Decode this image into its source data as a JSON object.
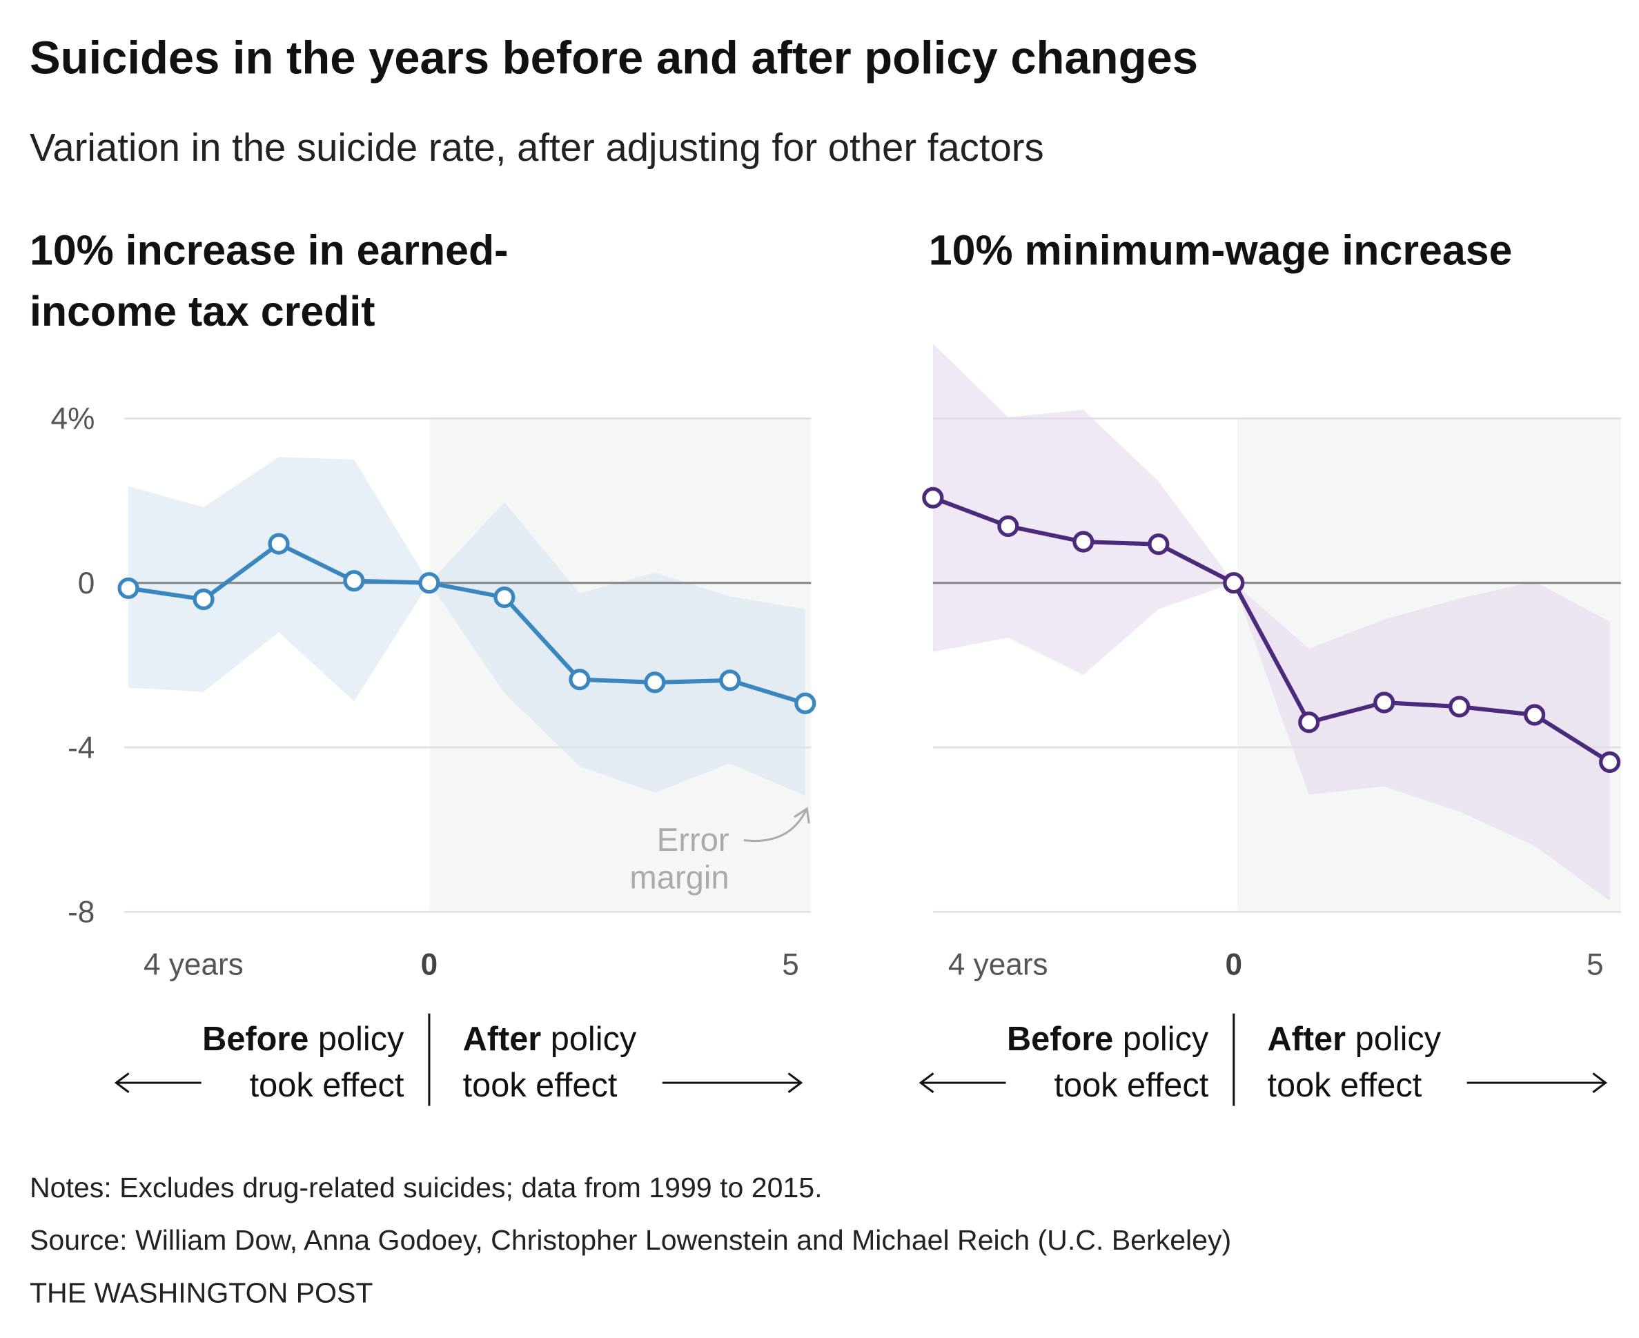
{
  "title": "Suicides in the years before and after policy changes",
  "subtitle": "Variation in the suicide rate, after adjusting for other factors",
  "notes": "Notes: Excludes drug-related suicides; data from 1999 to 2015.",
  "source": "Source: William Dow, Anna Godoey, Christopher Lowenstein and Michael Reich (U.C. Berkeley)",
  "credit": "THE WASHINGTON POST",
  "before_bold": "Before",
  "before_rest": " policy",
  "before_line2": "took effect",
  "after_bold": "After",
  "after_rest": " policy",
  "after_line2": "took effect",
  "annotation": [
    "Error",
    "margin"
  ],
  "chart_data": [
    {
      "type": "line",
      "title_lines": [
        "10% increase in earned-",
        "income tax credit"
      ],
      "color": "#3a87c0",
      "band_color": "#d6e6f0",
      "x": [
        -4,
        -3,
        -2,
        -1,
        0,
        1,
        2,
        3,
        4,
        5
      ],
      "x_tick_labels": [
        "4 years",
        "0",
        "5"
      ],
      "y_tick_labels": [
        "4%",
        "0",
        "-4",
        "-8"
      ],
      "ylim": [
        -8,
        4
      ],
      "values": [
        -0.13,
        -0.4,
        0.95,
        0.05,
        0,
        -0.35,
        -2.35,
        -2.42,
        -2.37,
        -2.93
      ],
      "upper": [
        2.35,
        1.84,
        3.06,
        3.0,
        0,
        1.96,
        -0.25,
        0.25,
        -0.33,
        -0.64
      ],
      "lower": [
        -2.55,
        -2.65,
        -1.2,
        -2.88,
        0,
        -2.68,
        -4.46,
        -5.1,
        -4.39,
        -5.18
      ]
    },
    {
      "type": "line",
      "title_lines": [
        "10% minimum-wage increase"
      ],
      "color": "#4b2a7b",
      "band_color": "#e6d9ec",
      "x": [
        -4,
        -3,
        -2,
        -1,
        0,
        1,
        2,
        3,
        4,
        5
      ],
      "x_tick_labels": [
        "4 years",
        "0",
        "5"
      ],
      "ylim": [
        -8,
        4
      ],
      "values": [
        2.07,
        1.38,
        1.0,
        0.94,
        0,
        -3.39,
        -2.91,
        -3.01,
        -3.21,
        -4.36
      ],
      "upper": [
        5.82,
        4.03,
        4.21,
        2.47,
        0,
        -1.6,
        -0.89,
        -0.38,
        0.03,
        -0.94
      ],
      "lower": [
        -1.68,
        -1.33,
        -2.24,
        -0.64,
        0,
        -5.15,
        -4.95,
        -5.56,
        -6.4,
        -7.73
      ]
    }
  ]
}
